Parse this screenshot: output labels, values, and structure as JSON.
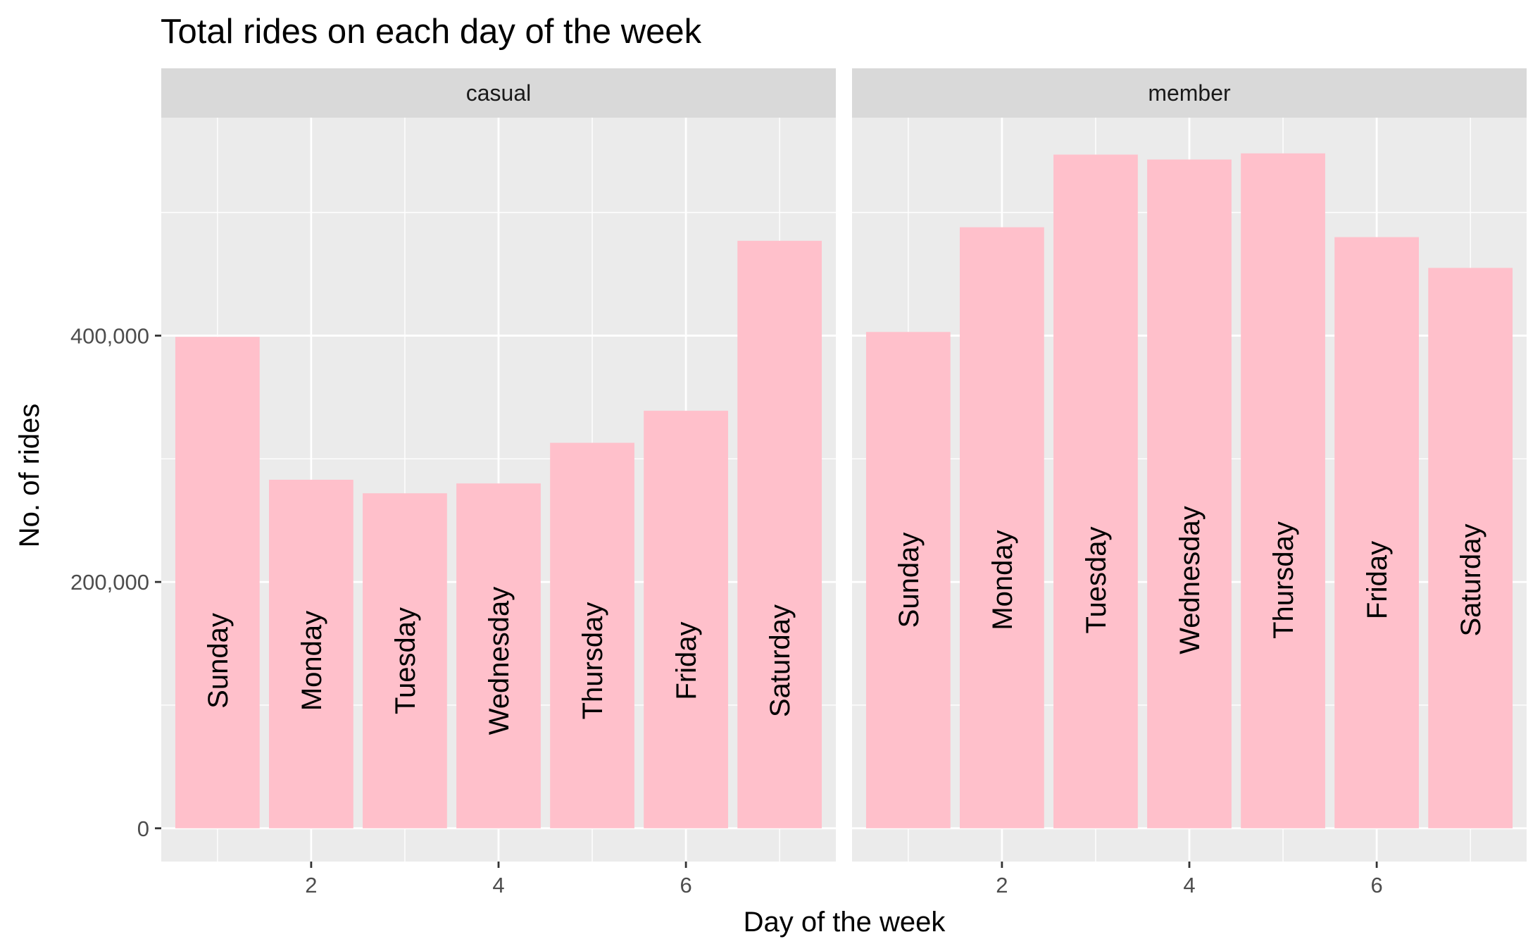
{
  "chart_data": {
    "type": "bar",
    "title": "Total rides on each day of the week",
    "xlabel": "Day of the week",
    "ylabel": "No. of rides",
    "x": [
      1,
      2,
      3,
      4,
      5,
      6,
      7
    ],
    "x_tick_labels": [
      "2",
      "4",
      "6"
    ],
    "x_tick_values": [
      2,
      4,
      6
    ],
    "y_tick_labels": [
      "0",
      "200,000",
      "400,000"
    ],
    "y_tick_values": [
      0,
      200000,
      400000
    ],
    "xlim": [
      0.4,
      7.6
    ],
    "ylim": [
      -27000,
      577000
    ],
    "bar_color": "#FFC0CB",
    "panel_background": "#EBEBEB",
    "strip_background": "#D9D9D9",
    "grid": true,
    "legend": "none",
    "facets": [
      {
        "label": "casual",
        "categories": [
          "Sunday",
          "Monday",
          "Tuesday",
          "Wednesday",
          "Thursday",
          "Friday",
          "Saturday"
        ],
        "values": [
          399000,
          283000,
          272000,
          280000,
          313000,
          339000,
          477000
        ]
      },
      {
        "label": "member",
        "categories": [
          "Sunday",
          "Monday",
          "Tuesday",
          "Wednesday",
          "Thursday",
          "Friday",
          "Saturday"
        ],
        "values": [
          403000,
          488000,
          547000,
          543000,
          548000,
          480000,
          455000
        ]
      }
    ]
  }
}
